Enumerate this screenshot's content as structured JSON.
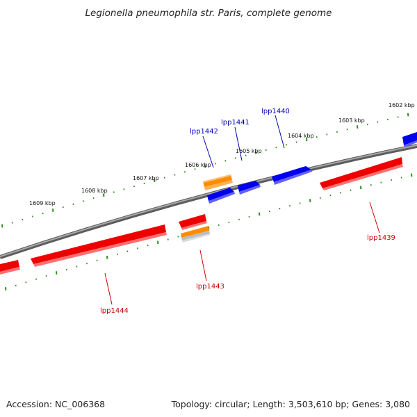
{
  "title": "Legionella pneumophila str. Paris, complete genome",
  "footer": {
    "accession": "Accession: NC_006368",
    "topology": "Topology: circular; Length: 3,503,610 bp; Genes: 3,080"
  },
  "colors": {
    "backbone": "#808080",
    "tick": "#2e8b22",
    "forward_gene": "#0000ee",
    "reverse_gene": "#ee0000",
    "other_feature": "#ff8c00",
    "forward_label": "#0000bb",
    "reverse_label": "#cc0000"
  },
  "kbp_labels": [
    "1602 kbp",
    "1603 kbp",
    "1604 kbp",
    "1605 kbp",
    "1606 kbp",
    "1607 kbp",
    "1608 kbp",
    "1609 kbp"
  ],
  "gene_labels": {
    "lpp1439": "lpp1439",
    "lpp1440": "lpp1440",
    "lpp1441": "lpp1441",
    "lpp1442": "lpp1442",
    "lpp1443": "lpp1443",
    "lpp1444": "lpp1444"
  }
}
